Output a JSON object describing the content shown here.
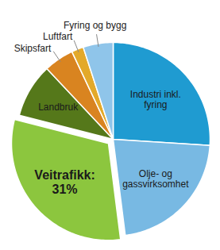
{
  "chart_data": {
    "type": "pie",
    "categories": [
      "Industri inkl.\nfyring",
      "Olje- og\ngassvirksomhet",
      "Veitrafikk:",
      "Landbruk",
      "Skipsfart",
      "Luftfart",
      "Fyring og bygg"
    ],
    "values": [
      26,
      22,
      31,
      9,
      5,
      2,
      5
    ],
    "value_labels": [
      null,
      null,
      "31%",
      null,
      null,
      null,
      null
    ],
    "colors": [
      "#1f9bd1",
      "#78b9e3",
      "#8cc63e",
      "#55781a",
      "#d98420",
      "#e3a92a",
      "#8fc5ea"
    ]
  }
}
